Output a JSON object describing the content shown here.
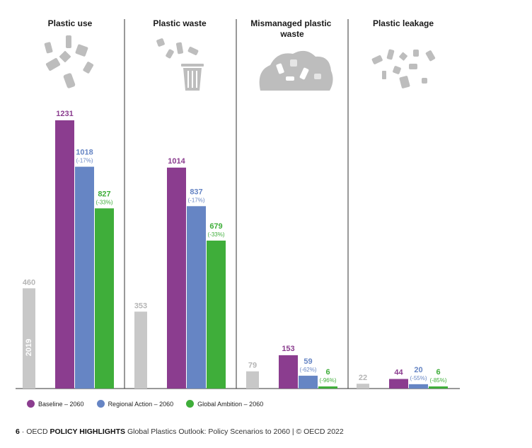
{
  "chart_data": {
    "type": "bar",
    "categories": [
      "Plastic use",
      "Plastic waste",
      "Mismanaged plastic waste",
      "Plastic leakage"
    ],
    "category_title_lines": [
      [
        "Plastic use"
      ],
      [
        "Plastic waste"
      ],
      [
        "Mismanaged plastic",
        "waste"
      ],
      [
        "Plastic leakage"
      ]
    ],
    "base_label": "2019",
    "base_values": [
      460,
      353,
      79,
      22
    ],
    "series": [
      {
        "name": "Baseline – 2060",
        "values": [
          1231,
          1014,
          153,
          44
        ],
        "changes": [
          "",
          "",
          "",
          ""
        ],
        "color": "#8b3d8f"
      },
      {
        "name": "Regional Action – 2060",
        "values": [
          1018,
          837,
          59,
          20
        ],
        "changes": [
          "(-17%)",
          "(-17%)",
          "(-62%)",
          "(-55%)"
        ],
        "color": "#6685c4"
      },
      {
        "name": "Global Ambition – 2060",
        "values": [
          827,
          679,
          6,
          6
        ],
        "changes": [
          "(-33%)",
          "(-33%)",
          "(-96%)",
          "(-85%)"
        ],
        "color": "#3fae3a"
      }
    ],
    "base_color": "#c8c8c8",
    "base_label_color": "#b5b5b5",
    "ylim": [
      0,
      1231
    ],
    "legend_position": "bottom-left"
  },
  "footer": {
    "page_number": "6",
    "separator": "·",
    "org": "OECD",
    "highlight": "POLICY HIGHLIGHTS",
    "title": "Global Plastics Outlook: Policy Scenarios to 2060",
    "copyright": "| © OECD 2022"
  }
}
